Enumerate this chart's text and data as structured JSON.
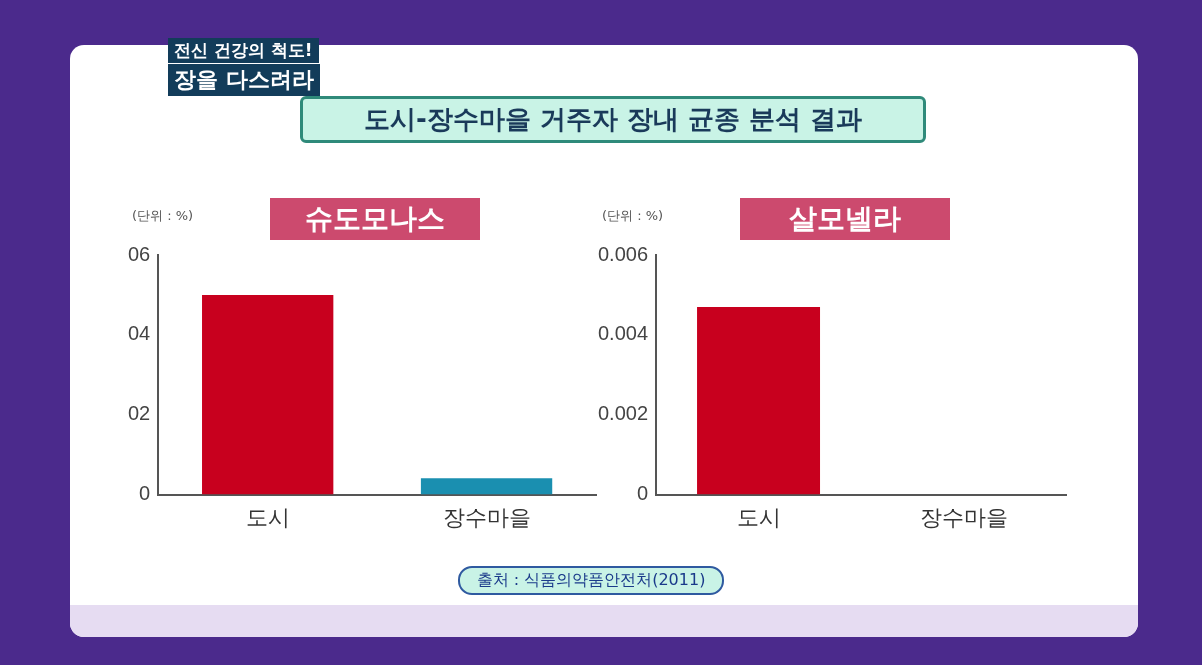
{
  "chart_data": [
    {
      "type": "other",
      "title": "도시-장수마을 거주자 장내 균종 분석 결과",
      "annotations": [
        "전신 건강의 척도!",
        "장을 다스려라",
        "출처 : 식품의약품안전처(2011)"
      ]
    },
    {
      "type": "bar",
      "title": "슈도모나스",
      "ylabel": "(단위 : %)",
      "categories": [
        "도시",
        "장수마을"
      ],
      "values": [
        5.0,
        0.41
      ],
      "colors": [
        "#c8001e",
        "#1a8fb0"
      ],
      "ylim": [
        0,
        6
      ],
      "yticks": [
        0,
        {
          "value": 2,
          "label": "02"
        },
        {
          "value": 4,
          "label": "04"
        },
        {
          "value": 6,
          "label": "06"
        }
      ]
    },
    {
      "type": "bar",
      "title": "살모넬라",
      "ylabel": "(단위 : %)",
      "categories": [
        "도시",
        "장수마을"
      ],
      "values": [
        0.0047,
        0
      ],
      "colors": [
        "#c8001e",
        "#1a8fb0"
      ],
      "ylim": [
        0,
        0.006
      ],
      "yticks": [
        0,
        0.002,
        0.004,
        0.006
      ]
    }
  ]
}
